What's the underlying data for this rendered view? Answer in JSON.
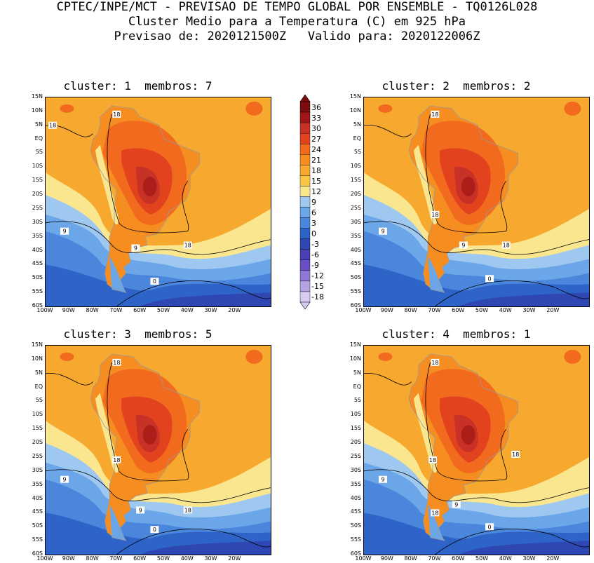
{
  "header": {
    "line1": "CPTEC/INPE/MCT - PREVISAO DE TEMPO GLOBAL POR ENSEMBLE - TQ0126L028",
    "line2": "Cluster Medio para a Temperatura (C) em 925 hPa",
    "line3": "Previsao de: 2020121500Z   Valido para: 2020122006Z"
  },
  "panels": [
    {
      "title": "cluster: 1  membros: 7",
      "contour_labels": [
        "18",
        "18",
        "9",
        "9",
        "18",
        "0"
      ]
    },
    {
      "title": "cluster: 2  membros: 2",
      "contour_labels": [
        "18",
        "18",
        "9",
        "9",
        "18",
        "0"
      ]
    },
    {
      "title": "cluster: 3  membros: 5",
      "contour_labels": [
        "18",
        "18",
        "9",
        "9",
        "18",
        "0"
      ]
    },
    {
      "title": "cluster: 4  membros: 1",
      "contour_labels": [
        "18",
        "18",
        "18",
        "9",
        "9",
        "18",
        "0"
      ]
    }
  ],
  "axes": {
    "lat_labels": [
      "15N",
      "10N",
      "5N",
      "EQ",
      "5S",
      "10S",
      "15S",
      "20S",
      "25S",
      "30S",
      "35S",
      "40S",
      "45S",
      "50S",
      "55S",
      "60S"
    ],
    "lon_labels": [
      "100W",
      "90W",
      "80W",
      "70W",
      "60W",
      "50W",
      "40W",
      "30W",
      "20W"
    ]
  },
  "colorbar": {
    "labels": [
      "36",
      "33",
      "30",
      "27",
      "24",
      "21",
      "18",
      "15",
      "12",
      "9",
      "6",
      "3",
      "0",
      "-3",
      "-6",
      "-9",
      "-12",
      "-15",
      "-18"
    ],
    "colors": [
      "#7b0c0c",
      "#a11616",
      "#c83226",
      "#e3421f",
      "#f26a1e",
      "#f68d20",
      "#f6a92e",
      "#f8c545",
      "#fbe690",
      "#9ec8f0",
      "#6ba6e8",
      "#4a86dc",
      "#2e64c8",
      "#2f47b3",
      "#4a3fb3",
      "#6a4fc4",
      "#8f78d6",
      "#b4a2e4",
      "#d7cbf2"
    ]
  },
  "map_colors": {
    "ocean_warm": "#f6a92e",
    "ocean_mild": "#f8c545",
    "cool": "#6ba6e8",
    "cold": "#2e64c8",
    "coast": "#9a9a9a"
  }
}
